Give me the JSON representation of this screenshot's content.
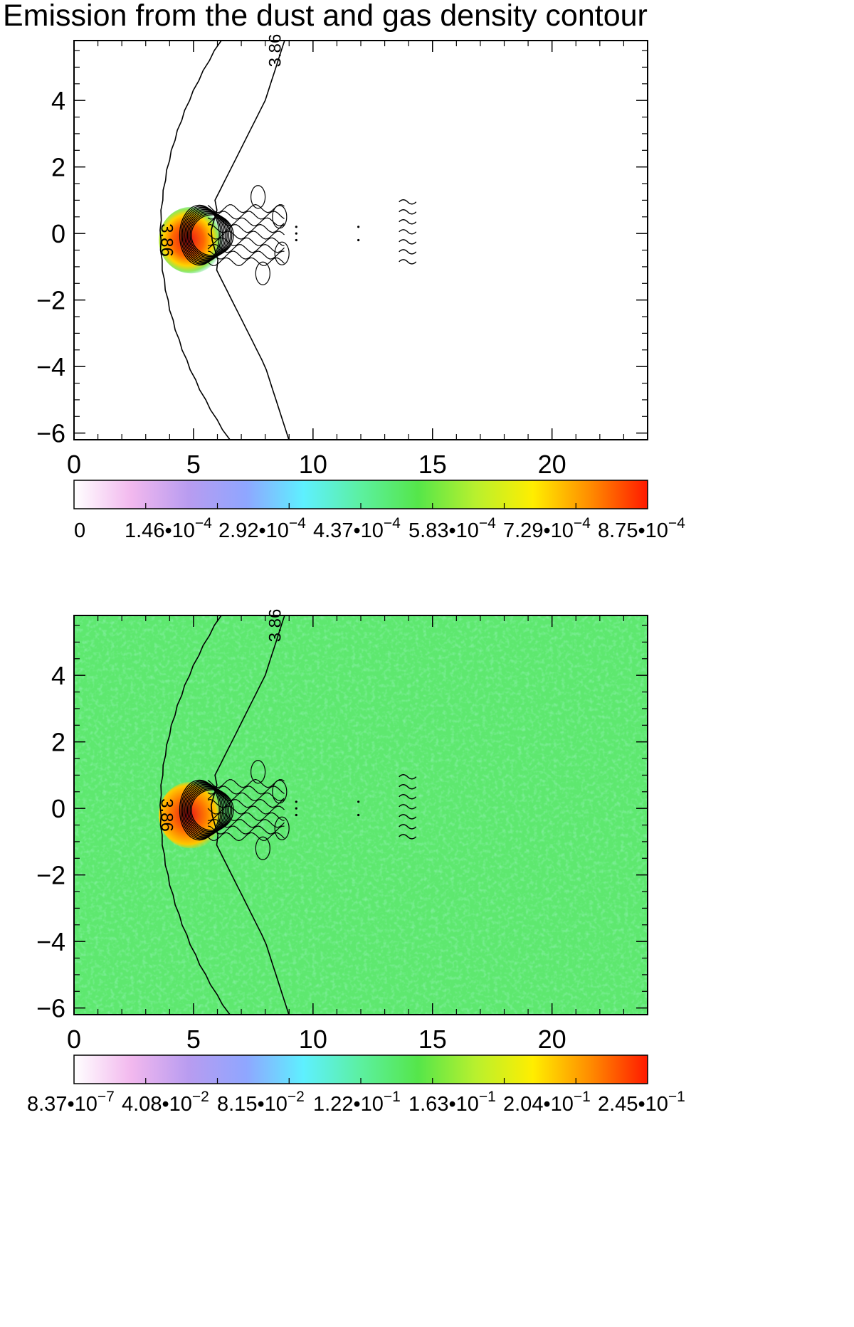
{
  "title": "Emission from the dust and gas density contour",
  "chart_data": [
    {
      "type": "heatmap",
      "title": "Emission from the dust and gas density contour",
      "xlim": [
        0,
        24
      ],
      "ylim": [
        -6.2,
        5.8
      ],
      "xticks": [
        0,
        5,
        10,
        15,
        20
      ],
      "yticks": [
        4,
        2,
        0,
        -2,
        -4,
        -6
      ],
      "xtick_labels": [
        "0",
        "5",
        "10",
        "15",
        "20"
      ],
      "ytick_labels": [
        "4",
        "2",
        "0",
        "−2",
        "−4",
        "−6"
      ],
      "background": "white",
      "contour_label": "3.86",
      "colorbar": {
        "colors": [
          "#ffffff",
          "#f2b8ee",
          "#b89cf0",
          "#8fa6ff",
          "#5ef0ff",
          "#5cf0a0",
          "#55e64a",
          "#b8f02e",
          "#ffee00",
          "#ff8c00",
          "#ff1a00"
        ],
        "tick_values": [
          0,
          0.000146,
          0.000292,
          0.000437,
          0.000583,
          0.000729,
          0.000875
        ],
        "tick_labels": [
          {
            "mant": "0",
            "exp": ""
          },
          {
            "mant": "1.46•10",
            "exp": "−4"
          },
          {
            "mant": "2.92•10",
            "exp": "−4"
          },
          {
            "mant": "4.37•10",
            "exp": "−4"
          },
          {
            "mant": "5.83•10",
            "exp": "−4"
          },
          {
            "mant": "7.29•10",
            "exp": "−4"
          },
          {
            "mant": "8.75•10",
            "exp": "−4"
          }
        ]
      }
    },
    {
      "type": "heatmap",
      "xlim": [
        0,
        24
      ],
      "ylim": [
        -6.2,
        5.8
      ],
      "xticks": [
        0,
        5,
        10,
        15,
        20
      ],
      "yticks": [
        4,
        2,
        0,
        -2,
        -4,
        -6
      ],
      "xtick_labels": [
        "0",
        "5",
        "10",
        "15",
        "20"
      ],
      "ytick_labels": [
        "4",
        "2",
        "0",
        "−2",
        "−4",
        "−6"
      ],
      "background": "#5ee86f",
      "contour_label": "3.86",
      "colorbar": {
        "colors": [
          "#ffffff",
          "#f2b8ee",
          "#b89cf0",
          "#8fa6ff",
          "#5ef0ff",
          "#5cf0a0",
          "#55e64a",
          "#b8f02e",
          "#ffee00",
          "#ff8c00",
          "#ff1a00"
        ],
        "tick_values": [
          8.37e-07,
          0.0408,
          0.0815,
          0.122,
          0.163,
          0.204,
          0.245
        ],
        "tick_labels": [
          {
            "mant": "8.37•10",
            "exp": "−7"
          },
          {
            "mant": "4.08•10",
            "exp": "−2"
          },
          {
            "mant": "8.15•10",
            "exp": "−2"
          },
          {
            "mant": "1.22•10",
            "exp": "−1"
          },
          {
            "mant": "1.63•10",
            "exp": "−1"
          },
          {
            "mant": "2.04•10",
            "exp": "−1"
          },
          {
            "mant": "2.45•10",
            "exp": "−1"
          }
        ]
      }
    }
  ]
}
